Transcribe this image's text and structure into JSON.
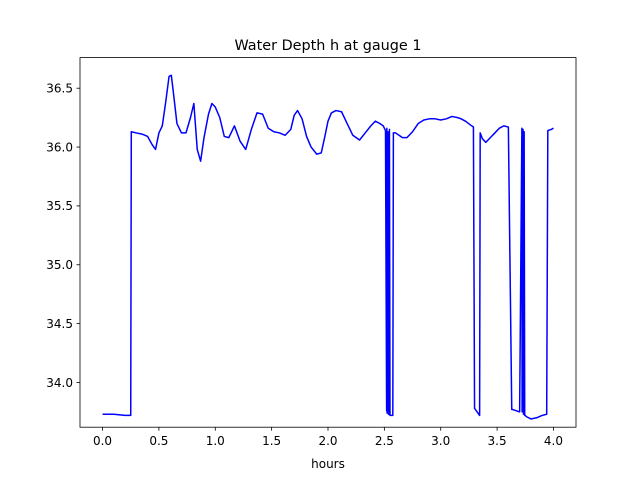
{
  "chart_data": {
    "type": "line",
    "title": "Water Depth h at gauge 1",
    "xlabel": "hours",
    "ylabel": "",
    "xlim": [
      -0.2,
      4.2
    ],
    "ylim": [
      33.62,
      36.76
    ],
    "xticks": [
      0.0,
      0.5,
      1.0,
      1.5,
      2.0,
      2.5,
      3.0,
      3.5,
      4.0
    ],
    "xtick_labels": [
      "0.0",
      "0.5",
      "1.0",
      "1.5",
      "2.0",
      "2.5",
      "3.0",
      "3.5",
      "4.0"
    ],
    "yticks": [
      34.0,
      34.5,
      35.0,
      35.5,
      36.0,
      36.5
    ],
    "ytick_labels": [
      "34.0",
      "34.5",
      "35.0",
      "35.5",
      "36.0",
      "36.5"
    ],
    "grid": false,
    "series": [
      {
        "color": "#0000ff",
        "x": [
          0.0,
          0.1,
          0.2,
          0.25,
          0.255,
          0.3,
          0.35,
          0.4,
          0.44,
          0.47,
          0.5,
          0.53,
          0.56,
          0.59,
          0.61,
          0.63,
          0.66,
          0.7,
          0.74,
          0.78,
          0.81,
          0.84,
          0.87,
          0.9,
          0.94,
          0.97,
          1.0,
          1.04,
          1.08,
          1.12,
          1.17,
          1.22,
          1.27,
          1.32,
          1.37,
          1.42,
          1.47,
          1.52,
          1.57,
          1.62,
          1.67,
          1.7,
          1.73,
          1.77,
          1.81,
          1.85,
          1.9,
          1.94,
          1.97,
          2.0,
          2.03,
          2.07,
          2.12,
          2.17,
          2.22,
          2.28,
          2.33,
          2.38,
          2.42,
          2.46,
          2.49,
          2.51,
          2.52,
          2.522,
          2.524,
          2.532,
          2.536,
          2.54,
          2.545,
          2.55,
          2.575,
          2.58,
          2.6,
          2.63,
          2.66,
          2.7,
          2.75,
          2.8,
          2.85,
          2.9,
          2.95,
          3.0,
          3.05,
          3.1,
          3.15,
          3.18,
          3.22,
          3.26,
          3.29,
          3.3,
          3.345,
          3.35,
          3.37,
          3.4,
          3.44,
          3.48,
          3.52,
          3.56,
          3.6,
          3.63,
          3.64,
          3.7,
          3.72,
          3.722,
          3.73,
          3.734,
          3.74,
          3.745,
          3.75,
          3.76,
          3.8,
          3.85,
          3.9,
          3.94,
          3.95,
          3.98,
          4.0
        ],
        "y": [
          33.73,
          33.73,
          33.72,
          33.72,
          36.13,
          36.12,
          36.11,
          36.09,
          36.02,
          35.98,
          36.12,
          36.18,
          36.38,
          36.6,
          36.61,
          36.45,
          36.2,
          36.12,
          36.12,
          36.25,
          36.37,
          35.98,
          35.88,
          36.08,
          36.28,
          36.37,
          36.34,
          36.25,
          36.09,
          36.08,
          36.18,
          36.05,
          35.98,
          36.15,
          36.29,
          36.28,
          36.16,
          36.13,
          36.12,
          36.1,
          36.15,
          36.27,
          36.31,
          36.24,
          36.09,
          36.0,
          35.94,
          35.95,
          36.08,
          36.22,
          36.29,
          36.31,
          36.3,
          36.2,
          36.1,
          36.06,
          36.12,
          36.18,
          36.22,
          36.2,
          36.18,
          36.14,
          33.76,
          36.16,
          33.74,
          36.13,
          33.73,
          33.73,
          36.15,
          33.72,
          33.72,
          36.12,
          36.12,
          36.1,
          36.08,
          36.08,
          36.13,
          36.2,
          36.23,
          36.24,
          36.24,
          36.23,
          36.24,
          36.26,
          36.25,
          36.24,
          36.22,
          36.19,
          36.17,
          33.78,
          33.72,
          36.12,
          36.07,
          36.04,
          36.08,
          36.12,
          36.16,
          36.18,
          36.17,
          33.77,
          33.77,
          33.75,
          36.16,
          33.75,
          36.15,
          33.73,
          36.13,
          33.72,
          33.72,
          33.71,
          33.69,
          33.7,
          33.72,
          33.73,
          36.14,
          36.15,
          36.16
        ]
      }
    ]
  }
}
